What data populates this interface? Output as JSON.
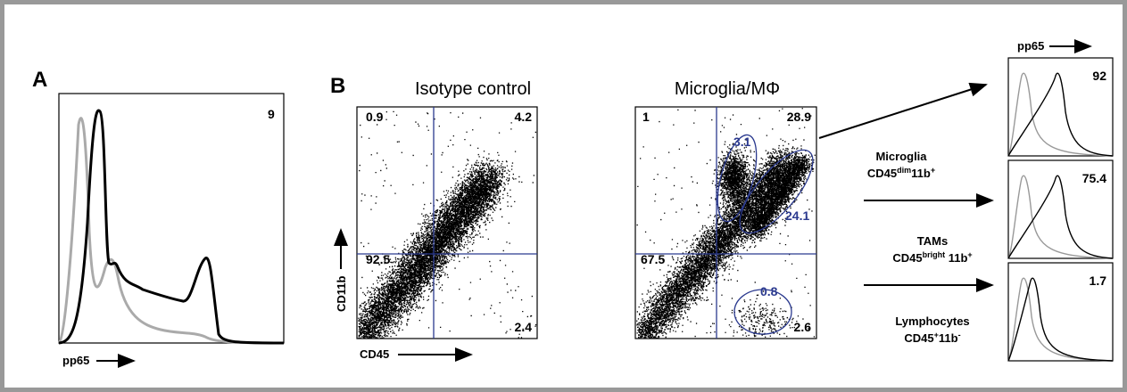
{
  "panel_a": {
    "label": "A",
    "histogram": {
      "percent": "9",
      "x_label": "pp65"
    }
  },
  "panel_b": {
    "label": "B",
    "plots": [
      {
        "title": "Isotype control",
        "quadrants": [
          "0.9",
          "4.2",
          "92.5",
          "2.4"
        ],
        "y_label": "CD11b",
        "x_label": "CD45"
      },
      {
        "title": "Microglia/MΦ",
        "quadrants": [
          "1",
          "28.9",
          "67.5",
          "2.6"
        ],
        "gates": [
          "3.1",
          "24.1",
          "0.8"
        ]
      }
    ],
    "populations": [
      {
        "name": "Microglia",
        "marker": [
          "CD45",
          "dim",
          "11b",
          "+"
        ]
      },
      {
        "name": "TAMs",
        "marker": [
          "CD45",
          "bright",
          " 11b",
          "+"
        ]
      },
      {
        "name": "Lymphocytes",
        "marker": [
          "CD45",
          "+",
          "11b",
          "-"
        ]
      }
    ],
    "histograms": {
      "x_label": "pp65",
      "percents": [
        "92",
        "75.4",
        "1.7"
      ]
    }
  }
}
